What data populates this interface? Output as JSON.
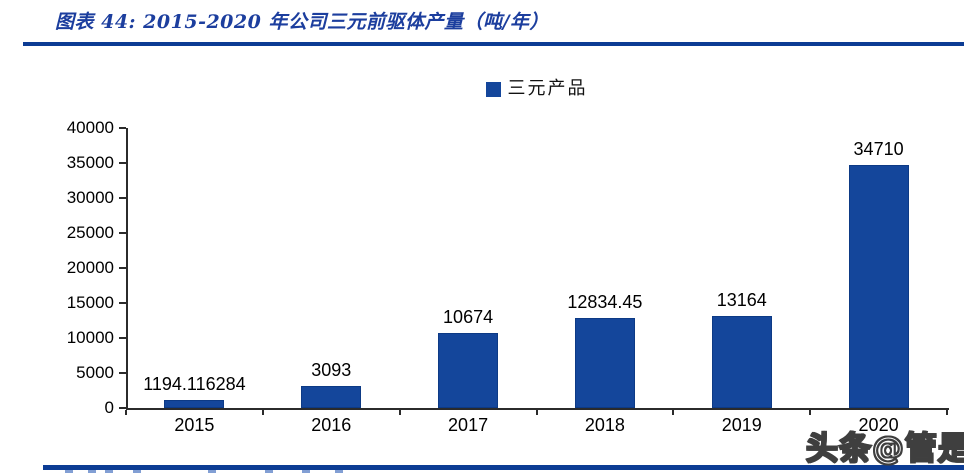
{
  "figure": {
    "title": "图表 44:  2015-2020 年公司三元前驱体产量（吨/年）"
  },
  "legend": {
    "label": "三元产品"
  },
  "chart_data": {
    "type": "bar",
    "title": "2015-2020 年公司三元前驱体产量（吨/年）",
    "series_name": "三元产品",
    "categories": [
      "2015",
      "2016",
      "2017",
      "2018",
      "2019",
      "2020"
    ],
    "values": [
      1194.116284,
      3093,
      10674,
      12834.45,
      13164,
      34710
    ],
    "value_labels": [
      "1194.116284",
      "3093",
      "10674",
      "12834.45",
      "13164",
      "34710"
    ],
    "xlabel": "",
    "ylabel": "",
    "ylim": [
      0,
      40000
    ],
    "yticks": [
      0,
      5000,
      10000,
      15000,
      20000,
      25000,
      30000,
      35000,
      40000
    ],
    "grid": false,
    "legend_position": "top-center",
    "bar_color": "#14469b"
  },
  "watermark": {
    "text": "头条@管是"
  },
  "colors": {
    "rule_blue": "#0c3c94",
    "title_blue": "#1c3e9e",
    "bar_blue": "#14469b",
    "axis_black": "#2b2b2b",
    "label_black": "#000000"
  }
}
